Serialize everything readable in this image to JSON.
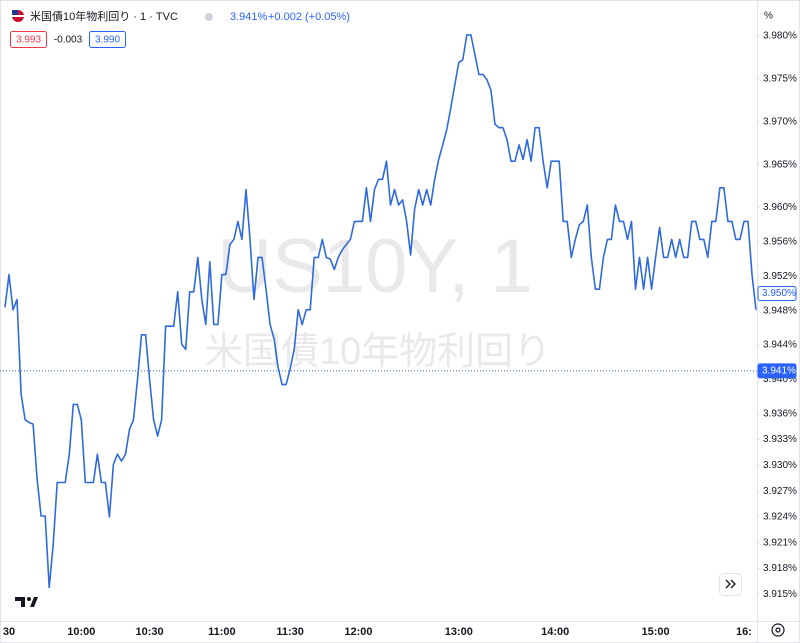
{
  "chart_data": {
    "type": "line",
    "title": "米国債10年物利回り · 1 · TVC",
    "header": {
      "price": "3.941%",
      "change": "+0.002 (+0.05%)",
      "bid": "3.993",
      "spread": "-0.003",
      "ask": "3.990"
    },
    "watermark": {
      "symbol": "US10Y, 1",
      "name": "米国債10年物利回り"
    },
    "y_unit": "%",
    "categories": [
      null,
      "30",
      null,
      null,
      null,
      null,
      null,
      null,
      null,
      null,
      null,
      null,
      null,
      null,
      null,
      null,
      null,
      null,
      null,
      "10:00",
      null,
      null,
      null,
      null,
      null,
      null,
      null,
      null,
      null,
      null,
      null,
      null,
      null,
      null,
      null,
      null,
      "10:30",
      null,
      null,
      null,
      null,
      null,
      null,
      null,
      null,
      null,
      null,
      null,
      null,
      null,
      null,
      null,
      null,
      null,
      "11:00",
      null,
      null,
      null,
      null,
      null,
      null,
      null,
      null,
      null,
      null,
      null,
      null,
      null,
      null,
      null,
      null,
      "11:30",
      null,
      null,
      null,
      null,
      null,
      null,
      null,
      null,
      null,
      null,
      null,
      null,
      null,
      null,
      null,
      null,
      "12:00",
      null,
      null,
      null,
      null,
      null,
      null,
      null,
      null,
      null,
      null,
      null,
      null,
      null,
      null,
      null,
      null,
      null,
      null,
      null,
      null,
      null,
      null,
      null,
      null,
      "13:00",
      null,
      null,
      null,
      null,
      null,
      null,
      null,
      null,
      null,
      null,
      null,
      null,
      null,
      null,
      null,
      null,
      null,
      null,
      null,
      null,
      null,
      null,
      null,
      "14:00",
      null,
      null,
      null,
      null,
      null,
      null,
      null,
      null,
      null,
      null,
      null,
      null,
      null,
      null,
      null,
      null,
      null,
      null,
      null,
      null,
      null,
      null,
      null,
      null,
      "15:00",
      null,
      null,
      null,
      null,
      null,
      null,
      null,
      null,
      null,
      null,
      null,
      null,
      null,
      null,
      null,
      null,
      null,
      null,
      null,
      null,
      null,
      "16:",
      null,
      null,
      null
    ],
    "series": [
      {
        "name": "US10Y",
        "color": "#2f6bdc",
        "values": [
          3.9484,
          3.9522,
          3.9481,
          3.9493,
          3.9383,
          3.9353,
          3.935,
          3.9348,
          3.9284,
          3.9241,
          3.9241,
          3.9158,
          3.9208,
          3.928,
          3.928,
          3.928,
          3.9313,
          3.9371,
          3.9371,
          3.9353,
          3.928,
          3.928,
          3.928,
          3.9313,
          3.928,
          3.928,
          3.924,
          3.9301,
          3.9313,
          3.9305,
          3.9313,
          3.9342,
          3.9353,
          3.94,
          3.9452,
          3.9452,
          3.94,
          3.9353,
          3.9334,
          3.9353,
          3.9462,
          3.9462,
          3.9462,
          3.9502,
          3.9441,
          3.9435,
          3.9502,
          3.9502,
          3.9542,
          3.9493,
          3.9464,
          3.9537,
          3.9464,
          3.9464,
          3.9522,
          3.9522,
          3.9557,
          3.9563,
          3.9584,
          3.9563,
          3.9621,
          3.9563,
          3.9493,
          3.9542,
          3.9542,
          3.9505,
          3.9464,
          3.9447,
          3.9414,
          3.9394,
          3.9394,
          3.9412,
          3.9435,
          3.9481,
          3.9464,
          3.9481,
          3.9481,
          3.9542,
          3.9542,
          3.9563,
          3.9542,
          3.954,
          3.9528,
          3.9542,
          3.9551,
          3.9557,
          3.9563,
          3.9584,
          3.9584,
          3.9584,
          3.9623,
          3.9584,
          3.9621,
          3.9633,
          3.9633,
          3.9654,
          3.9603,
          3.9621,
          3.9603,
          3.9609,
          3.9584,
          3.9545,
          3.9598,
          3.9621,
          3.9603,
          3.9621,
          3.9603,
          3.9633,
          3.9656,
          3.9673,
          3.9691,
          3.9716,
          3.9743,
          3.9769,
          3.9772,
          3.9801,
          3.9801,
          3.9778,
          3.9755,
          3.9755,
          3.9749,
          3.9737,
          3.9697,
          3.9693,
          3.9693,
          3.9679,
          3.9654,
          3.9654,
          3.9673,
          3.9656,
          3.9679,
          3.9654,
          3.9693,
          3.9693,
          3.9654,
          3.9623,
          3.9654,
          3.9654,
          3.9654,
          3.9584,
          3.9584,
          3.9542,
          3.9563,
          3.958,
          3.9584,
          3.9603,
          3.9542,
          3.9505,
          3.9505,
          3.9542,
          3.9563,
          3.9563,
          3.9603,
          3.9584,
          3.9584,
          3.9563,
          3.9584,
          3.9505,
          3.9542,
          3.9505,
          3.9542,
          3.9505,
          3.9542,
          3.9577,
          3.9542,
          3.9542,
          3.9563,
          3.9542,
          3.9563,
          3.9542,
          3.9542,
          3.9584,
          3.9584,
          3.9563,
          3.9563,
          3.9542,
          3.9584,
          3.9584,
          3.9623,
          3.9623,
          3.9584,
          3.9584,
          3.9563,
          3.9563,
          3.9584,
          3.9584,
          3.9522,
          3.9481
        ]
      }
    ],
    "ylim": [
      3.912,
      3.983
    ],
    "yticks": [
      {
        "value": 3.915,
        "label": "3.915%"
      },
      {
        "value": 3.918,
        "label": "3.918%"
      },
      {
        "value": 3.921,
        "label": "3.921%"
      },
      {
        "value": 3.924,
        "label": "3.924%"
      },
      {
        "value": 3.927,
        "label": "3.927%"
      },
      {
        "value": 3.93,
        "label": "3.930%"
      },
      {
        "value": 3.933,
        "label": "3.933%"
      },
      {
        "value": 3.936,
        "label": "3.936%"
      },
      {
        "value": 3.94,
        "label": "3.940%"
      },
      {
        "value": 3.944,
        "label": "3.944%"
      },
      {
        "value": 3.948,
        "label": "3.948%"
      },
      {
        "value": 3.952,
        "label": "3.952%"
      },
      {
        "value": 3.956,
        "label": "3.956%"
      },
      {
        "value": 3.96,
        "label": "3.960%"
      },
      {
        "value": 3.965,
        "label": "3.965%"
      },
      {
        "value": 3.97,
        "label": "3.970%"
      },
      {
        "value": 3.975,
        "label": "3.975%"
      },
      {
        "value": 3.98,
        "label": "3.980%"
      }
    ],
    "price_lines": [
      {
        "value": 3.95,
        "label": "3.950%"
      },
      {
        "value": 3.941,
        "label": "3.941%"
      }
    ],
    "grid": false
  }
}
